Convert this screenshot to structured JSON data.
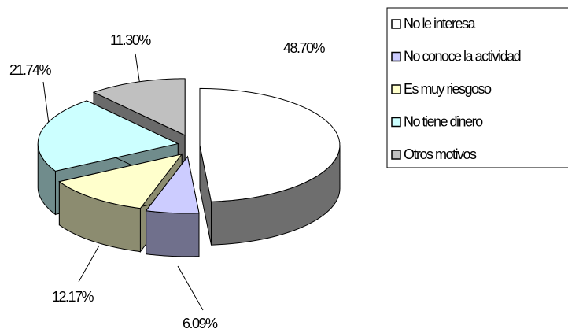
{
  "chart_data": {
    "type": "pie",
    "categories": [
      "No le interesa",
      "No conoce la actividad",
      "Es muy riesgoso",
      "No tiene dinero",
      "Otros motivos"
    ],
    "values": [
      48.7,
      6.09,
      12.17,
      21.74,
      11.3
    ],
    "value_labels": [
      "48.70%",
      "6.09%",
      "12.17%",
      "21.74%",
      "11.30%"
    ],
    "colors": [
      "#ffffff",
      "#ccccff",
      "#ffffcc",
      "#ccffff",
      "#c0c0c0"
    ],
    "legend": "right"
  }
}
